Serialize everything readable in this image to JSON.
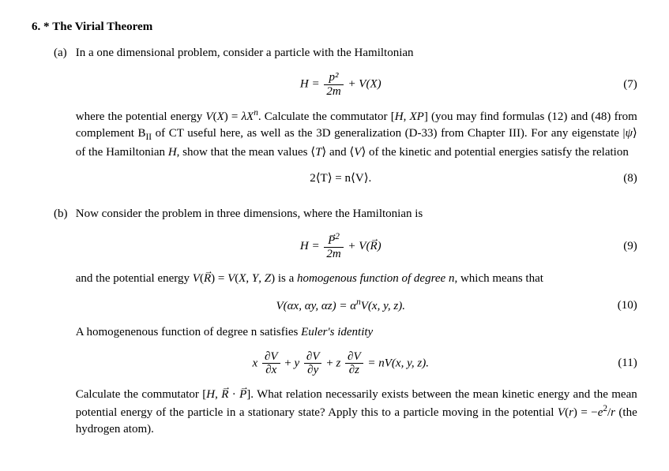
{
  "problem": {
    "number": "6. *",
    "title": "The Virial Theorem"
  },
  "partA": {
    "label": "(a)",
    "intro": "In a one dimensional problem, consider a particle with the Hamiltonian",
    "eq7_num": "(7)",
    "body": "where the potential energy V(X) = λXⁿ. Calculate the commutator [H, XP] (you may find formulas (12) and (48) from complement B₁₁ of CT useful here, as well as the 3D generalization (D-33) from Chapter III). For any eigenstate |ψ⟩ of the Hamiltonian H, show that the mean values ⟨T⟩ and ⟨V⟩ of the kinetic and potential energies satisfy the relation",
    "eq8_text": "2⟨T⟩ = n⟨V⟩.",
    "eq8_num": "(8)"
  },
  "partB": {
    "label": "(b)",
    "intro": "Now consider the problem in three dimensions, where the Hamiltonian is",
    "eq9_num": "(9)",
    "homog_text_pre": "and the potential energy V(",
    "homog_text_mid": ") = V(X, Y, Z) is a ",
    "homog_text_em": "homogenous function of degree n",
    "homog_text_post": ", which means that",
    "eq10_text": "V(αx, αy, αz) = αⁿV(x, y, z).",
    "eq10_num": "(10)",
    "euler_text_pre": "A homogenenous function of degree n satisfies ",
    "euler_text_em": "Euler's identity",
    "eq11_rhs": " = nV(x, y, z).",
    "eq11_num": "(11)",
    "final": "Calculate the commutator [H, R→ · P→]. What relation necessarily exists between the mean kinetic energy and the mean potential energy of the particle in a stationary state? Apply this to a particle moving in the potential V(r) = −e²/r (the hydrogen atom)."
  },
  "math": {
    "H_eq": "H =",
    "p2": "p²",
    "two_m": "2m",
    "plus_VX": " + V(X)",
    "Pvec2": "P→²",
    "plus_VR": " + V(",
    "Rvec": "R",
    "close": ")",
    "x": "x",
    "y": "y",
    "z": "z",
    "dV": "∂V",
    "dx": "∂x",
    "dy": "∂y",
    "dz": "∂z",
    "plus": " + "
  }
}
